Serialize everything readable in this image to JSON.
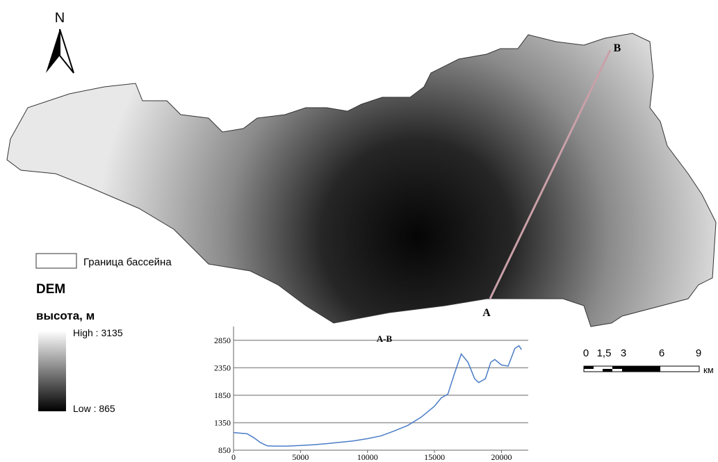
{
  "map": {
    "north": "N",
    "point_a": "A",
    "point_b": "B",
    "legend": {
      "boundary": "Граница бассейна",
      "layer": "DEM",
      "field": "высота, м",
      "high": "High : 3135",
      "low": "Low : 865"
    },
    "scale_bar": {
      "labels": [
        "0",
        "1,5",
        "3",
        "6",
        "9"
      ],
      "unit": "км"
    }
  },
  "chart_data": {
    "type": "line",
    "title": "A-B",
    "color": "#4a7cc7",
    "grid": true,
    "x": [
      0,
      500,
      1000,
      1500,
      2000,
      2500,
      3000,
      4000,
      5000,
      6000,
      7000,
      8000,
      9000,
      10000,
      11000,
      12000,
      12500,
      13000,
      14000,
      15000,
      15500,
      16000,
      16500,
      17000,
      17500,
      18000,
      18300,
      18800,
      19200,
      19500,
      20000,
      20500,
      21000,
      21300,
      21500
    ],
    "values": [
      1170,
      1160,
      1150,
      1080,
      990,
      930,
      925,
      925,
      935,
      950,
      970,
      995,
      1020,
      1060,
      1110,
      1200,
      1250,
      1300,
      1450,
      1650,
      1800,
      1870,
      2250,
      2600,
      2450,
      2150,
      2080,
      2150,
      2450,
      2500,
      2400,
      2380,
      2700,
      2750,
      2680
    ],
    "xlim": [
      0,
      22000
    ],
    "xticks": [
      0,
      5000,
      10000,
      15000,
      20000
    ],
    "ylim": [
      850,
      3100
    ],
    "yticks": [
      850,
      1350,
      1850,
      2350,
      2850
    ]
  }
}
